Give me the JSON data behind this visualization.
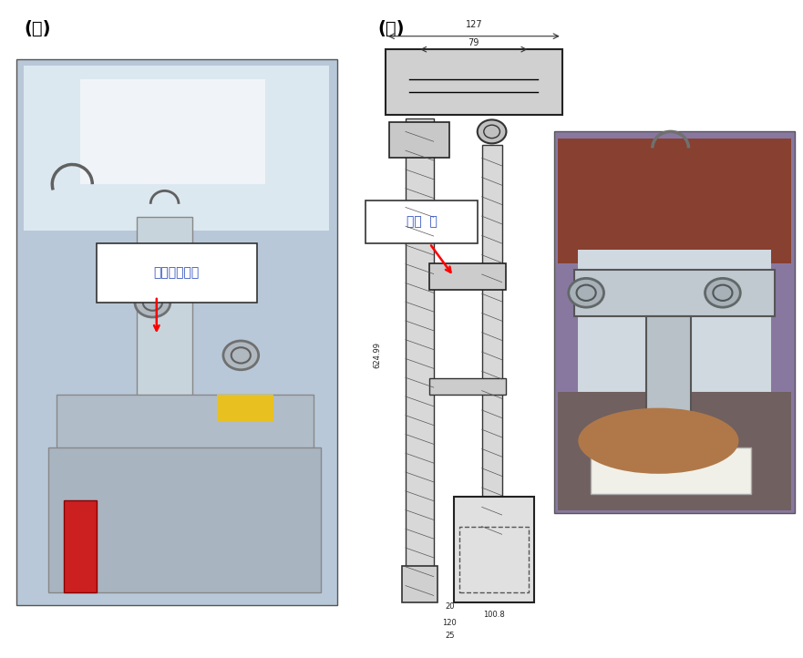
{
  "label_ga": "(가)",
  "label_na": "(나)",
  "annotation_left": "양극고정홀더",
  "annotation_right": "고정  핀",
  "background_color": "#ffffff",
  "dim_127": "127",
  "dim_79": "79",
  "dim_624": "624.99",
  "dim_20": "20",
  "dim_120": "120",
  "dim_25": "25",
  "dim_100": "100.8"
}
